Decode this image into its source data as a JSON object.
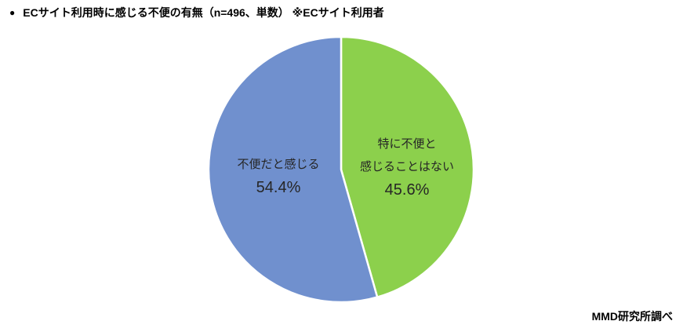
{
  "header": {
    "bullet": "●",
    "title": "ECサイト利用時に感じる不便の有無（n=496、単数） ※ECサイト利用者"
  },
  "source": "MMD研究所調べ",
  "chart_data": {
    "type": "pie",
    "title": "ECサイト利用時に感じる不便の有無",
    "sample_note": "n=496、単数",
    "population_note": "※ECサイト利用者",
    "start_angle": "top",
    "direction": "clockwise",
    "legend": "none",
    "labels_position": "inside",
    "slice_border_color": "#ffffff",
    "slices": [
      {
        "label": "特に不便と感じることはない",
        "value": 45.6,
        "value_label": "45.6%",
        "display_lines": [
          "特に不便と",
          "感じることはない"
        ],
        "color": "#8CD04C"
      },
      {
        "label": "不便だと感じる",
        "value": 54.4,
        "value_label": "54.4%",
        "display_lines": [
          "不便だと感じる"
        ],
        "color": "#7090CE"
      }
    ]
  }
}
